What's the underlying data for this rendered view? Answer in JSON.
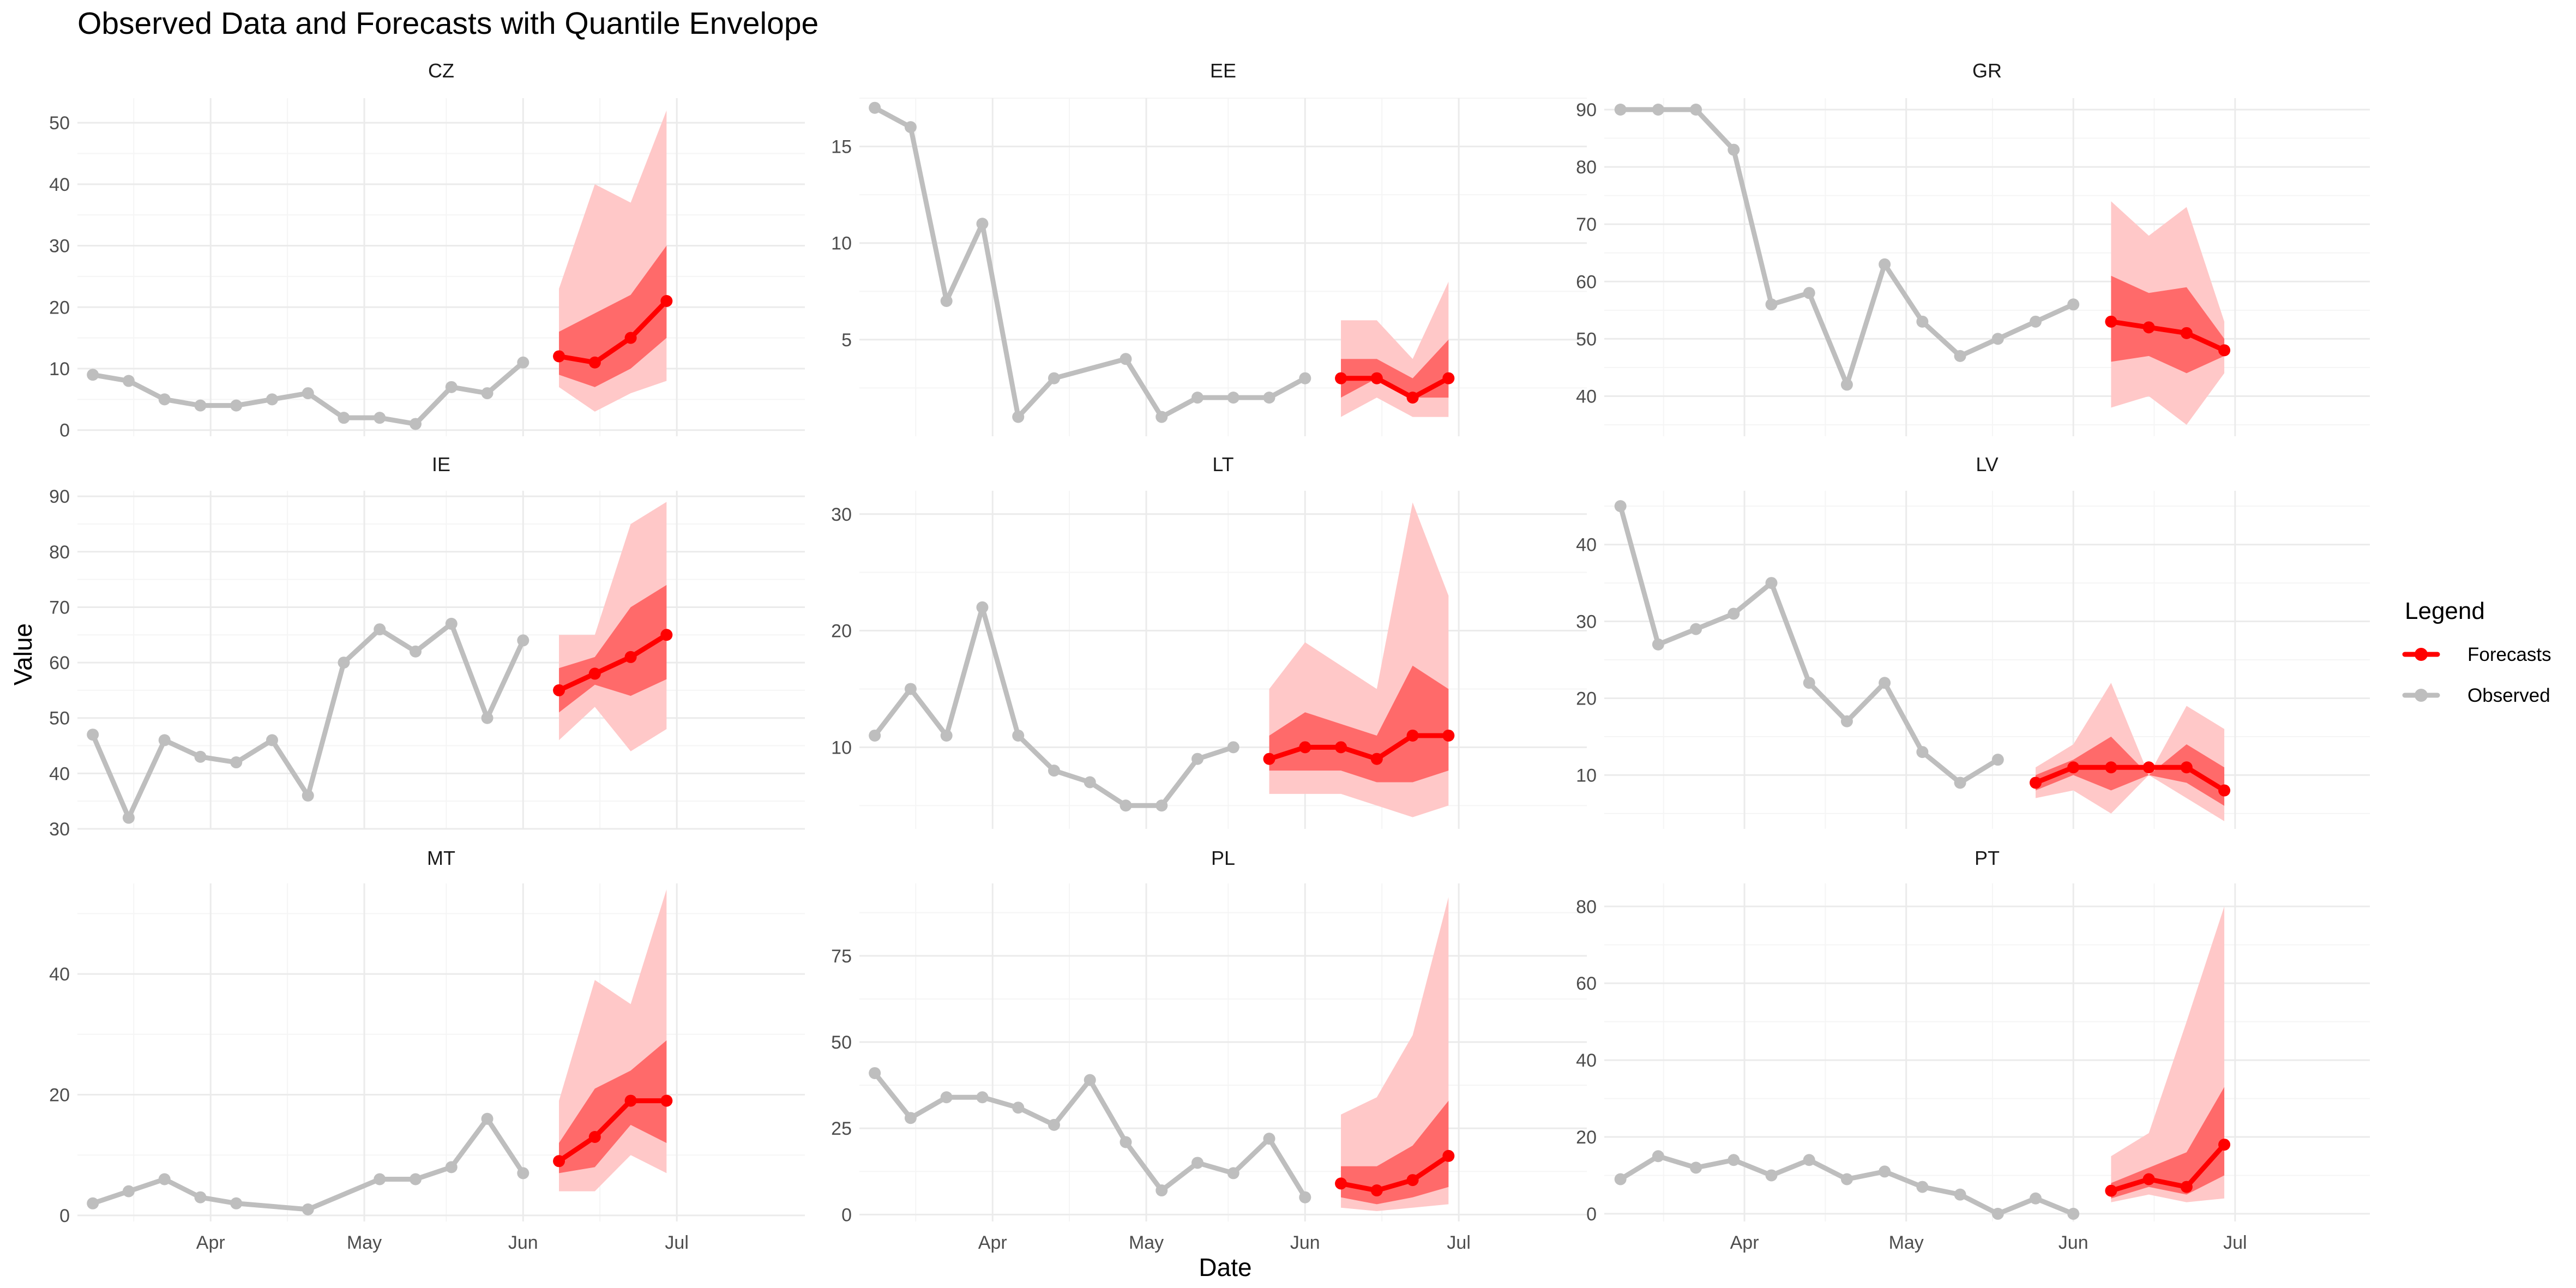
{
  "chart_data": {
    "type": "line",
    "title": "Observed Data and Forecasts with Quantile Envelope",
    "xlabel": "Date",
    "ylabel": "Value",
    "x_ticks": [
      "Apr",
      "May",
      "Jun",
      "Jul"
    ],
    "x_range_days": [
      -26,
      116
    ],
    "legend": {
      "title": "Legend",
      "position": "right",
      "entries": [
        {
          "name": "Forecasts",
          "color": "#FF0000"
        },
        {
          "name": "Observed",
          "color": "#BEBEBE"
        }
      ]
    },
    "colors": {
      "observed": "#BEBEBE",
      "forecast": "#FF0000",
      "inner_band": "#FF6A6A",
      "outer_band": "#FFC8C8",
      "grid_major": "#EBEBEB",
      "grid_minor": "#F5F5F5"
    },
    "panels": [
      {
        "name": "CZ",
        "ylim": [
          -1,
          54
        ],
        "yticks": [
          0,
          10,
          20,
          30,
          40,
          50
        ],
        "observed": {
          "x": [
            "2023-03-09",
            "2023-03-16",
            "2023-03-23",
            "2023-03-30",
            "2023-04-06",
            "2023-04-13",
            "2023-04-20",
            "2023-04-27",
            "2023-05-04",
            "2023-05-11",
            "2023-05-18",
            "2023-05-25",
            "2023-06-01"
          ],
          "y": [
            9,
            8,
            5,
            4,
            4,
            5,
            6,
            2,
            2,
            1,
            7,
            6,
            11
          ]
        },
        "forecast": {
          "x": [
            "2023-06-08",
            "2023-06-15",
            "2023-06-22",
            "2023-06-29"
          ],
          "median": [
            12,
            11,
            15,
            21
          ],
          "inner_low": [
            9,
            7,
            10,
            15
          ],
          "inner_high": [
            16,
            19,
            22,
            30
          ],
          "outer_low": [
            7,
            3,
            6,
            8
          ],
          "outer_high": [
            23,
            40,
            37,
            52
          ]
        }
      },
      {
        "name": "EE",
        "ylim": [
          0,
          17.5
        ],
        "yticks": [
          5,
          10,
          15
        ],
        "observed": {
          "x": [
            "2023-03-09",
            "2023-03-16",
            "2023-03-23",
            "2023-03-30",
            "2023-04-06",
            "2023-04-13",
            "2023-04-27",
            "2023-05-04",
            "2023-05-11",
            "2023-05-18",
            "2023-05-25",
            "2023-06-01"
          ],
          "y": [
            17,
            16,
            7,
            11,
            1,
            3,
            4,
            1,
            2,
            2,
            2,
            3
          ]
        },
        "forecast": {
          "x": [
            "2023-06-08",
            "2023-06-15",
            "2023-06-22",
            "2023-06-29"
          ],
          "median": [
            3,
            3,
            2,
            3
          ],
          "inner_low": [
            2,
            3,
            2,
            2
          ],
          "inner_high": [
            4,
            4,
            3,
            5
          ],
          "outer_low": [
            1,
            2,
            1,
            1
          ],
          "outer_high": [
            6,
            6,
            4,
            8
          ]
        }
      },
      {
        "name": "GR",
        "ylim": [
          33,
          92
        ],
        "yticks": [
          40,
          50,
          60,
          70,
          80,
          90
        ],
        "observed": {
          "x": [
            "2023-03-09",
            "2023-03-16",
            "2023-03-23",
            "2023-03-30",
            "2023-04-06",
            "2023-04-13",
            "2023-04-20",
            "2023-04-27",
            "2023-05-04",
            "2023-05-11",
            "2023-05-18",
            "2023-05-25",
            "2023-06-01"
          ],
          "y": [
            90,
            90,
            90,
            83,
            56,
            58,
            42,
            63,
            53,
            47,
            50,
            53,
            56
          ]
        },
        "forecast": {
          "x": [
            "2023-06-08",
            "2023-06-15",
            "2023-06-22",
            "2023-06-29"
          ],
          "median": [
            53,
            52,
            51,
            48
          ],
          "inner_low": [
            46,
            47,
            44,
            47
          ],
          "inner_high": [
            61,
            58,
            59,
            50
          ],
          "outer_low": [
            38,
            40,
            35,
            44
          ],
          "outer_high": [
            74,
            68,
            73,
            53
          ]
        }
      },
      {
        "name": "IE",
        "ylim": [
          30,
          91
        ],
        "yticks": [
          30,
          40,
          50,
          60,
          70,
          80,
          90
        ],
        "observed": {
          "x": [
            "2023-03-09",
            "2023-03-16",
            "2023-03-23",
            "2023-03-30",
            "2023-04-06",
            "2023-04-13",
            "2023-04-20",
            "2023-04-27",
            "2023-05-04",
            "2023-05-11",
            "2023-05-18",
            "2023-05-25",
            "2023-06-01"
          ],
          "y": [
            47,
            32,
            46,
            43,
            42,
            46,
            36,
            60,
            66,
            62,
            67,
            50,
            64
          ]
        },
        "forecast": {
          "x": [
            "2023-06-08",
            "2023-06-15",
            "2023-06-22",
            "2023-06-29"
          ],
          "median": [
            55,
            58,
            61,
            65
          ],
          "inner_low": [
            51,
            56,
            54,
            57
          ],
          "inner_high": [
            59,
            61,
            70,
            74
          ],
          "outer_low": [
            46,
            52,
            44,
            48
          ],
          "outer_high": [
            65,
            65,
            85,
            89
          ]
        }
      },
      {
        "name": "LT",
        "ylim": [
          3,
          32
        ],
        "yticks": [
          10,
          20,
          30
        ],
        "observed": {
          "x": [
            "2023-03-09",
            "2023-03-16",
            "2023-03-23",
            "2023-03-30",
            "2023-04-06",
            "2023-04-13",
            "2023-04-20",
            "2023-04-27",
            "2023-05-04",
            "2023-05-11",
            "2023-05-18"
          ],
          "y": [
            11,
            15,
            11,
            22,
            11,
            8,
            7,
            5,
            5,
            9,
            10
          ]
        },
        "forecast": {
          "x": [
            "2023-05-25",
            "2023-06-01",
            "2023-06-08",
            "2023-06-15",
            "2023-06-22",
            "2023-06-29"
          ],
          "median": [
            9,
            10,
            10,
            9,
            11,
            11
          ],
          "inner_low": [
            8,
            8,
            8,
            7,
            7,
            8
          ],
          "inner_high": [
            11,
            13,
            12,
            11,
            17,
            15
          ],
          "outer_low": [
            6,
            6,
            6,
            5,
            4,
            5
          ],
          "outer_high": [
            15,
            19,
            17,
            15,
            31,
            23
          ]
        }
      },
      {
        "name": "LV",
        "ylim": [
          3,
          47
        ],
        "yticks": [
          10,
          20,
          30,
          40
        ],
        "observed": {
          "x": [
            "2023-03-09",
            "2023-03-16",
            "2023-03-23",
            "2023-03-30",
            "2023-04-06",
            "2023-04-13",
            "2023-04-20",
            "2023-04-27",
            "2023-05-04",
            "2023-05-11",
            "2023-05-18"
          ],
          "y": [
            45,
            27,
            29,
            31,
            35,
            22,
            17,
            22,
            13,
            9,
            12
          ]
        },
        "forecast": {
          "x": [
            "2023-05-25",
            "2023-06-01",
            "2023-06-08",
            "2023-06-15",
            "2023-06-22",
            "2023-06-29"
          ],
          "median": [
            9,
            11,
            11,
            11,
            11,
            8
          ],
          "inner_low": [
            8,
            10,
            8,
            10,
            9,
            6
          ],
          "inner_high": [
            10,
            12,
            15,
            10,
            14,
            11
          ],
          "outer_low": [
            7,
            8,
            5,
            10,
            7,
            4
          ],
          "outer_high": [
            11,
            14,
            22,
            10,
            19,
            16
          ]
        }
      },
      {
        "name": "MT",
        "ylim": [
          -1,
          55
        ],
        "yticks": [
          0,
          20,
          40
        ],
        "observed": {
          "x": [
            "2023-03-09",
            "2023-03-16",
            "2023-03-23",
            "2023-03-30",
            "2023-04-06",
            "2023-04-20",
            "2023-05-04",
            "2023-05-11",
            "2023-05-18",
            "2023-05-25",
            "2023-06-01"
          ],
          "y": [
            2,
            4,
            6,
            3,
            2,
            1,
            6,
            6,
            8,
            16,
            7
          ]
        },
        "forecast": {
          "x": [
            "2023-06-08",
            "2023-06-15",
            "2023-06-22",
            "2023-06-29"
          ],
          "median": [
            9,
            13,
            19,
            19
          ],
          "inner_low": [
            7,
            8,
            15,
            12
          ],
          "inner_high": [
            12,
            21,
            24,
            29
          ],
          "outer_low": [
            4,
            4,
            10,
            7
          ],
          "outer_high": [
            19,
            39,
            35,
            54
          ]
        }
      },
      {
        "name": "PL",
        "ylim": [
          -2,
          96
        ],
        "yticks": [
          0,
          25,
          50,
          75
        ],
        "observed": {
          "x": [
            "2023-03-09",
            "2023-03-16",
            "2023-03-23",
            "2023-03-30",
            "2023-04-06",
            "2023-04-13",
            "2023-04-20",
            "2023-04-27",
            "2023-05-04",
            "2023-05-11",
            "2023-05-18",
            "2023-05-25",
            "2023-06-01"
          ],
          "y": [
            41,
            28,
            34,
            34,
            31,
            26,
            39,
            21,
            7,
            15,
            12,
            22,
            5
          ]
        },
        "forecast": {
          "x": [
            "2023-06-08",
            "2023-06-15",
            "2023-06-22",
            "2023-06-29"
          ],
          "median": [
            9,
            7,
            10,
            17
          ],
          "inner_low": [
            5,
            3,
            5,
            8
          ],
          "inner_high": [
            14,
            14,
            20,
            33
          ],
          "outer_low": [
            2,
            1,
            2,
            3
          ],
          "outer_high": [
            29,
            34,
            52,
            92
          ]
        }
      },
      {
        "name": "PT",
        "ylim": [
          -2,
          86
        ],
        "yticks": [
          0,
          20,
          40,
          60,
          80
        ],
        "observed": {
          "x": [
            "2023-03-09",
            "2023-03-16",
            "2023-03-23",
            "2023-03-30",
            "2023-04-06",
            "2023-04-13",
            "2023-04-20",
            "2023-04-27",
            "2023-05-04",
            "2023-05-11",
            "2023-05-18",
            "2023-05-25",
            "2023-06-01"
          ],
          "y": [
            9,
            15,
            12,
            14,
            10,
            14,
            9,
            11,
            7,
            5,
            0,
            4,
            0
          ]
        },
        "forecast": {
          "x": [
            "2023-06-08",
            "2023-06-15",
            "2023-06-22",
            "2023-06-29"
          ],
          "median": [
            6,
            9,
            7,
            18
          ],
          "inner_low": [
            4,
            7,
            5,
            10
          ],
          "inner_high": [
            8,
            12,
            16,
            33
          ],
          "outer_low": [
            3,
            5,
            3,
            4
          ],
          "outer_high": [
            15,
            21,
            50,
            80
          ]
        }
      }
    ]
  }
}
